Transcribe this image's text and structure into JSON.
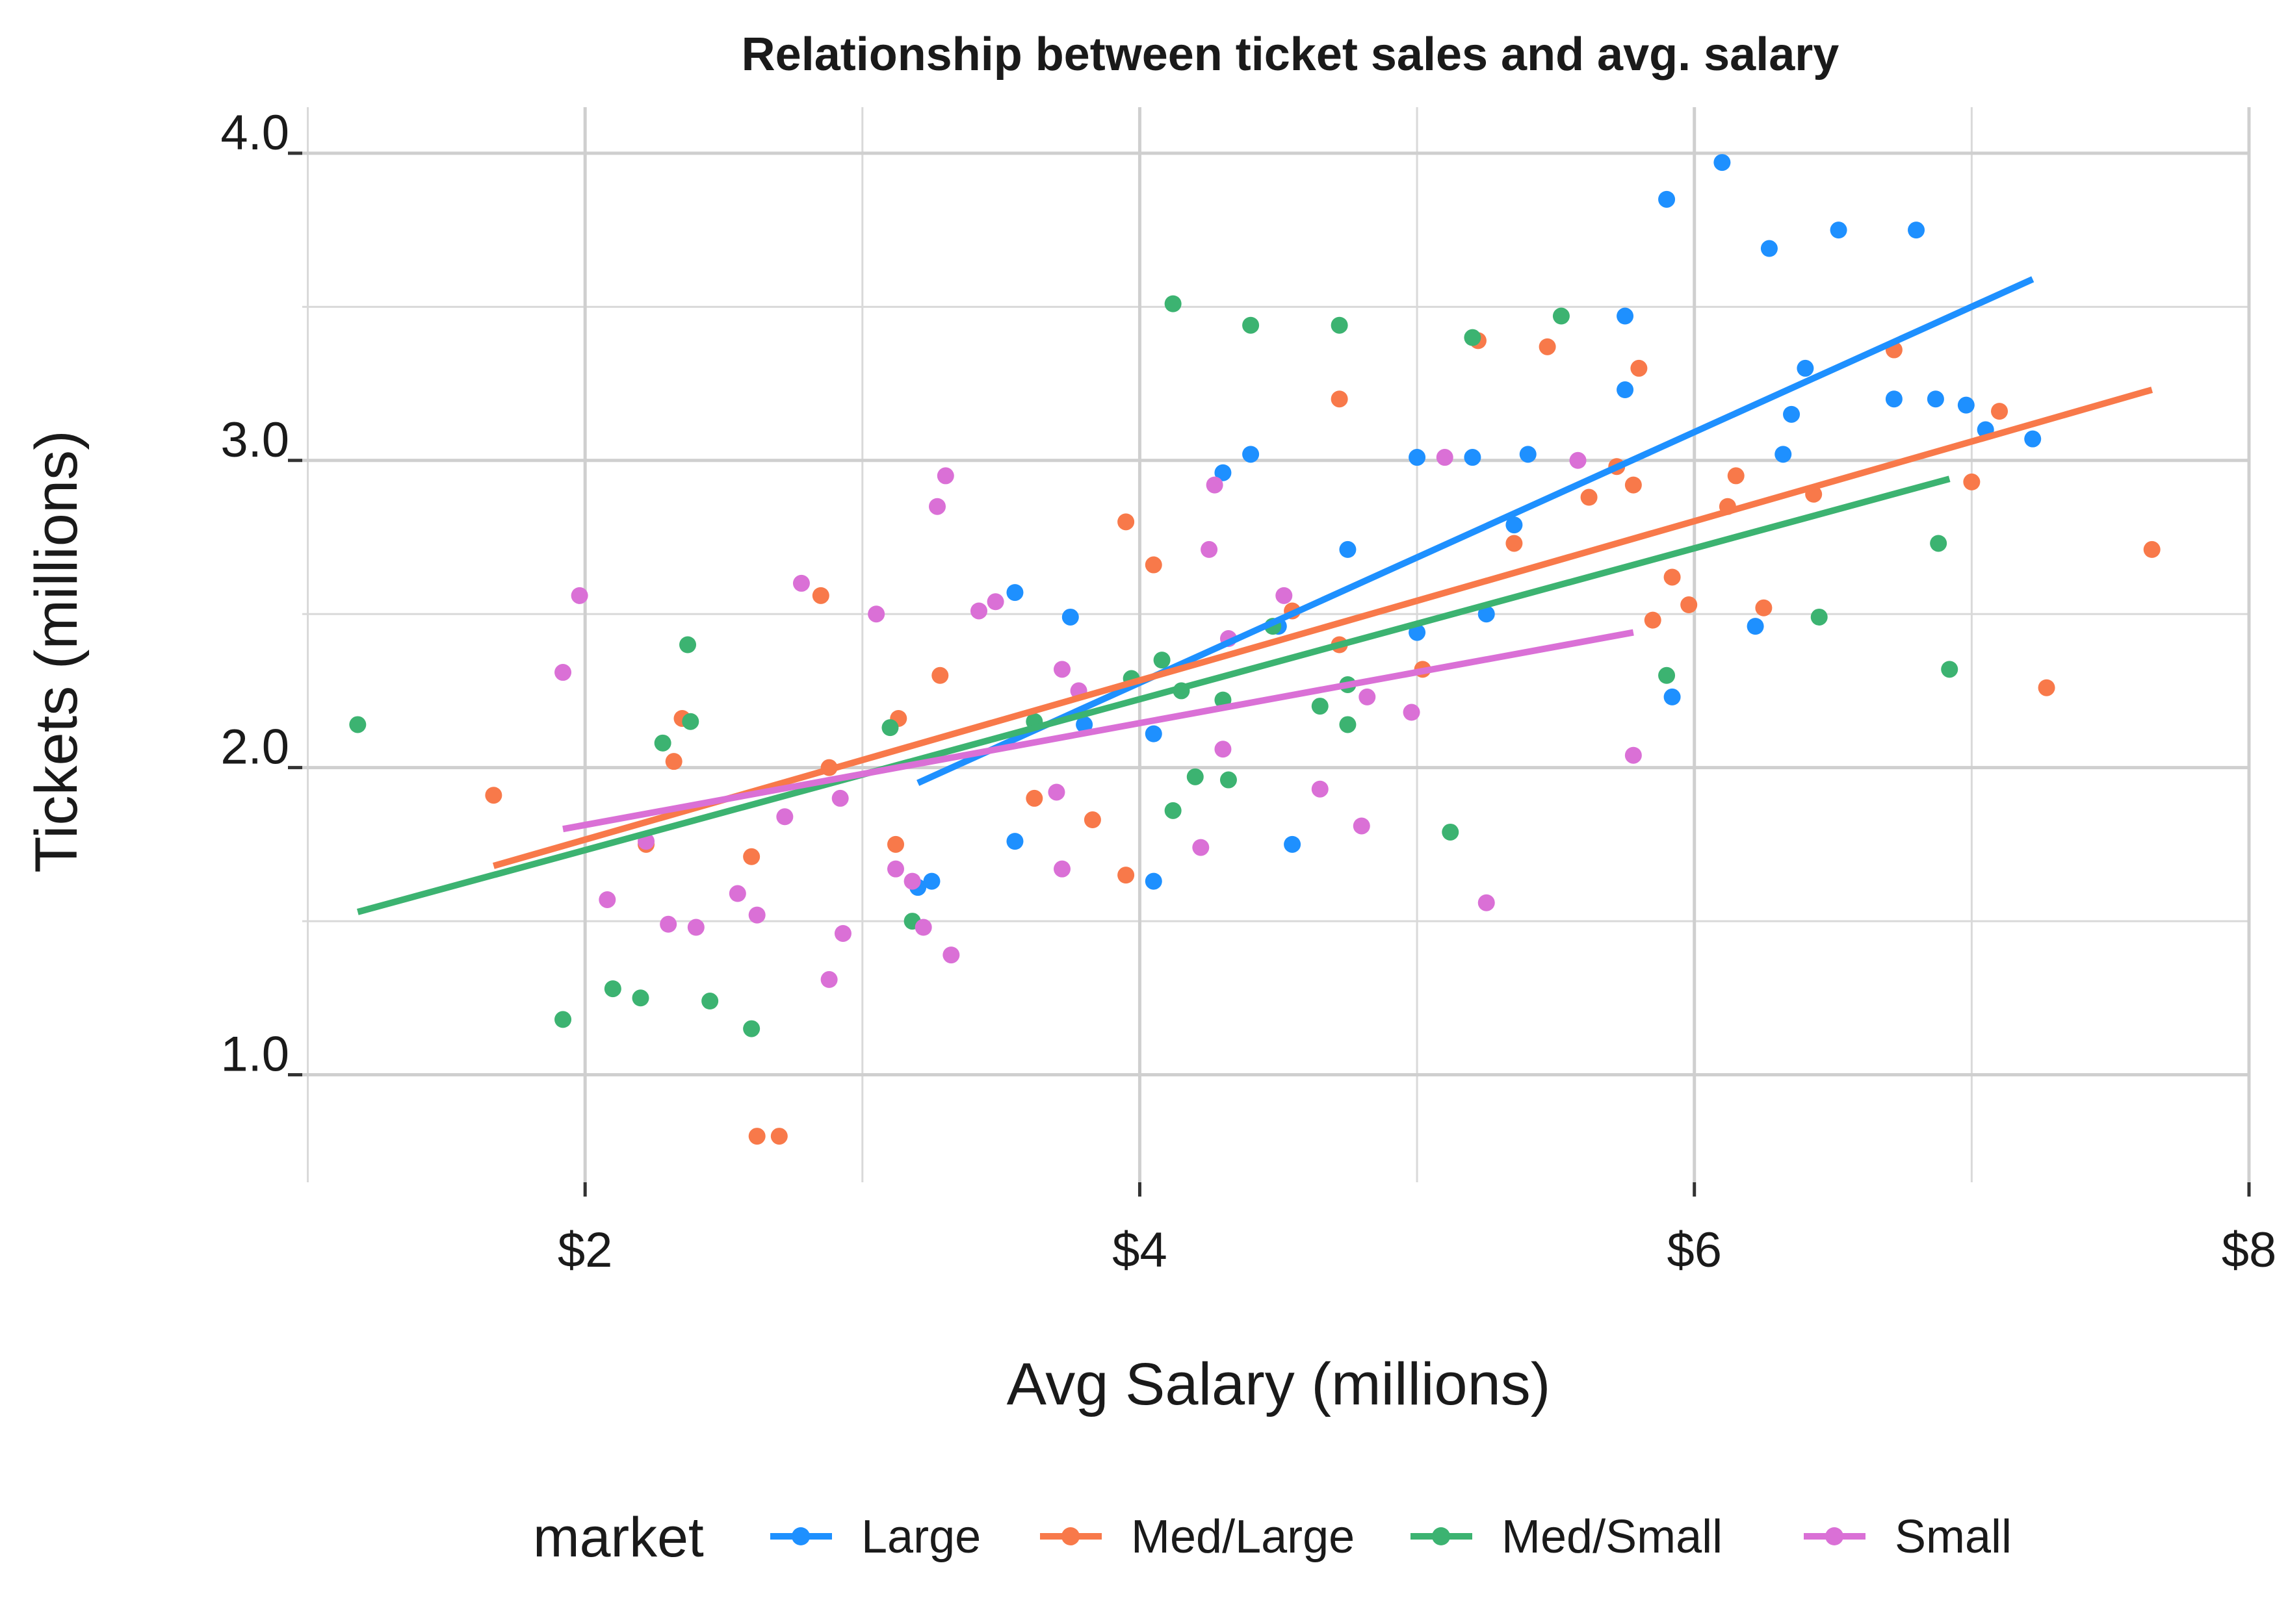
{
  "chart_data": {
    "type": "scatter",
    "title": "Relationship between ticket sales and avg. salary",
    "xlabel": "Avg Salary (millions)",
    "ylabel": "Tickets (millions)",
    "xlim": [
      0.98,
      8.0
    ],
    "ylim": [
      0.65,
      4.15
    ],
    "x_ticks": [
      2,
      4,
      6,
      8
    ],
    "x_tick_labels": [
      "$2",
      "$4",
      "$6",
      "$8"
    ],
    "y_ticks": [
      1.0,
      2.0,
      3.0,
      4.0
    ],
    "y_tick_labels": [
      "1.0",
      "2.0",
      "3.0",
      "4.0"
    ],
    "grid": true,
    "legend": {
      "title": "market",
      "position": "bottom"
    },
    "series": [
      {
        "name": "Large",
        "color": "#1E90FF",
        "points": [
          [
            3.2,
            1.61
          ],
          [
            3.25,
            1.63
          ],
          [
            3.55,
            2.57
          ],
          [
            3.55,
            1.76
          ],
          [
            3.75,
            2.49
          ],
          [
            3.8,
            2.14
          ],
          [
            4.05,
            2.11
          ],
          [
            4.05,
            1.63
          ],
          [
            4.3,
            2.96
          ],
          [
            4.4,
            3.02
          ],
          [
            4.5,
            2.46
          ],
          [
            4.55,
            1.75
          ],
          [
            4.75,
            2.71
          ],
          [
            5.0,
            2.44
          ],
          [
            5.0,
            3.01
          ],
          [
            5.2,
            3.01
          ],
          [
            5.25,
            2.5
          ],
          [
            5.35,
            2.79
          ],
          [
            5.4,
            3.02
          ],
          [
            5.75,
            3.47
          ],
          [
            5.75,
            3.23
          ],
          [
            5.9,
            3.85
          ],
          [
            5.92,
            2.23
          ],
          [
            6.1,
            3.97
          ],
          [
            6.22,
            2.46
          ],
          [
            6.27,
            3.69
          ],
          [
            6.32,
            3.02
          ],
          [
            6.35,
            3.15
          ],
          [
            6.4,
            3.3
          ],
          [
            6.52,
            3.75
          ],
          [
            6.72,
            3.2
          ],
          [
            6.8,
            3.75
          ],
          [
            6.87,
            3.2
          ],
          [
            6.98,
            3.18
          ],
          [
            7.05,
            3.1
          ],
          [
            7.22,
            3.07
          ]
        ],
        "trend": [
          [
            3.2,
            1.95
          ],
          [
            7.22,
            3.59
          ]
        ]
      },
      {
        "name": "Med/Large",
        "color": "#F8794A",
        "points": [
          [
            1.67,
            1.91
          ],
          [
            2.22,
            1.75
          ],
          [
            2.32,
            2.02
          ],
          [
            2.35,
            2.16
          ],
          [
            2.6,
            1.71
          ],
          [
            2.62,
            0.8
          ],
          [
            2.7,
            0.8
          ],
          [
            2.85,
            2.56
          ],
          [
            2.88,
            2.0
          ],
          [
            3.12,
            1.75
          ],
          [
            3.13,
            2.16
          ],
          [
            3.28,
            2.3
          ],
          [
            3.62,
            1.9
          ],
          [
            3.83,
            1.83
          ],
          [
            3.95,
            2.8
          ],
          [
            3.95,
            1.65
          ],
          [
            4.05,
            2.66
          ],
          [
            4.55,
            2.51
          ],
          [
            4.72,
            3.2
          ],
          [
            4.72,
            2.4
          ],
          [
            5.02,
            2.32
          ],
          [
            5.22,
            3.39
          ],
          [
            5.35,
            2.73
          ],
          [
            5.47,
            3.37
          ],
          [
            5.62,
            2.88
          ],
          [
            5.72,
            2.98
          ],
          [
            5.78,
            2.92
          ],
          [
            5.8,
            3.3
          ],
          [
            5.85,
            2.48
          ],
          [
            5.92,
            2.62
          ],
          [
            5.98,
            2.53
          ],
          [
            6.12,
            2.85
          ],
          [
            6.15,
            2.95
          ],
          [
            6.25,
            2.52
          ],
          [
            6.43,
            2.89
          ],
          [
            6.72,
            3.36
          ],
          [
            7.0,
            2.93
          ],
          [
            7.1,
            3.16
          ],
          [
            7.27,
            2.26
          ],
          [
            7.65,
            2.71
          ]
        ],
        "trend": [
          [
            1.67,
            1.68
          ],
          [
            7.65,
            3.23
          ]
        ]
      },
      {
        "name": "Med/Small",
        "color": "#3CB371",
        "points": [
          [
            1.18,
            2.14
          ],
          [
            1.92,
            1.18
          ],
          [
            2.1,
            1.28
          ],
          [
            2.2,
            1.25
          ],
          [
            2.28,
            2.08
          ],
          [
            2.37,
            2.4
          ],
          [
            2.38,
            2.15
          ],
          [
            2.45,
            1.24
          ],
          [
            2.6,
            1.15
          ],
          [
            3.1,
            2.13
          ],
          [
            3.18,
            1.5
          ],
          [
            3.62,
            2.15
          ],
          [
            3.97,
            2.29
          ],
          [
            4.08,
            2.35
          ],
          [
            4.12,
            1.86
          ],
          [
            4.12,
            3.51
          ],
          [
            4.15,
            2.25
          ],
          [
            4.2,
            1.97
          ],
          [
            4.3,
            2.22
          ],
          [
            4.32,
            1.96
          ],
          [
            4.4,
            3.44
          ],
          [
            4.48,
            2.46
          ],
          [
            4.65,
            2.2
          ],
          [
            4.72,
            3.44
          ],
          [
            4.75,
            2.27
          ],
          [
            4.75,
            2.14
          ],
          [
            5.12,
            1.79
          ],
          [
            5.2,
            3.4
          ],
          [
            5.52,
            3.47
          ],
          [
            5.9,
            2.3
          ],
          [
            6.45,
            2.49
          ],
          [
            6.88,
            2.73
          ],
          [
            6.92,
            2.32
          ]
        ],
        "trend": [
          [
            1.18,
            1.53
          ],
          [
            6.92,
            2.94
          ]
        ]
      },
      {
        "name": "Small",
        "color": "#DA70D6",
        "points": [
          [
            1.92,
            2.31
          ],
          [
            1.98,
            2.56
          ],
          [
            2.08,
            1.57
          ],
          [
            2.22,
            1.76
          ],
          [
            2.3,
            1.49
          ],
          [
            2.4,
            1.48
          ],
          [
            2.55,
            1.59
          ],
          [
            2.62,
            1.52
          ],
          [
            2.72,
            1.84
          ],
          [
            2.78,
            2.6
          ],
          [
            2.88,
            1.31
          ],
          [
            2.92,
            1.9
          ],
          [
            2.93,
            1.46
          ],
          [
            3.05,
            2.5
          ],
          [
            3.12,
            1.67
          ],
          [
            3.18,
            1.63
          ],
          [
            3.22,
            1.48
          ],
          [
            3.27,
            2.85
          ],
          [
            3.3,
            2.95
          ],
          [
            3.32,
            1.39
          ],
          [
            3.42,
            2.51
          ],
          [
            3.48,
            2.54
          ],
          [
            3.7,
            1.92
          ],
          [
            3.72,
            2.32
          ],
          [
            3.72,
            1.67
          ],
          [
            3.78,
            2.25
          ],
          [
            4.22,
            1.74
          ],
          [
            4.25,
            2.71
          ],
          [
            4.27,
            2.92
          ],
          [
            4.3,
            2.06
          ],
          [
            4.32,
            2.42
          ],
          [
            4.52,
            2.56
          ],
          [
            4.65,
            1.93
          ],
          [
            4.8,
            1.81
          ],
          [
            4.82,
            2.23
          ],
          [
            4.98,
            2.18
          ],
          [
            5.1,
            3.01
          ],
          [
            5.25,
            1.56
          ],
          [
            5.58,
            3.0
          ],
          [
            5.78,
            2.04
          ]
        ],
        "trend": [
          [
            1.92,
            1.8
          ],
          [
            5.78,
            2.44
          ]
        ]
      }
    ]
  }
}
